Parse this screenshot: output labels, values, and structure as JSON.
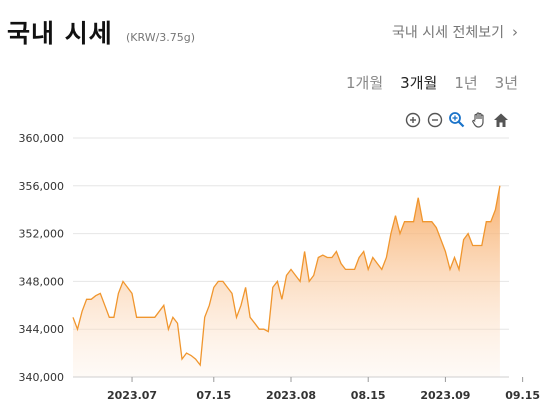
{
  "header": {
    "title": "국내 시세",
    "unit": "(KRW/3.75g)",
    "view_all": "국내 시세 전체보기",
    "chevron": "›"
  },
  "ranges": [
    {
      "label": "1개월",
      "active": false
    },
    {
      "label": "3개월",
      "active": true
    },
    {
      "label": "1년",
      "active": false
    },
    {
      "label": "3년",
      "active": false
    }
  ],
  "toolbar": [
    "zoom-in-icon",
    "zoom-out-icon",
    "magnifier-icon",
    "pan-hand-icon",
    "home-icon"
  ],
  "colors": {
    "line": "#f0962e",
    "fill_top": "#f7a55a",
    "grid": "#e6e6e6"
  },
  "chart_data": {
    "type": "area",
    "ylim": [
      340000,
      360000
    ],
    "y_ticks": [
      340000,
      344000,
      348000,
      352000,
      356000,
      360000
    ],
    "y_tick_labels": [
      "340,000",
      "344,000",
      "348,000",
      "352,000",
      "356,000",
      "360,000"
    ],
    "x_range": [
      0,
      96
    ],
    "x_ticks": [
      {
        "x": 13,
        "label": "2023.07"
      },
      {
        "x": 31,
        "label": "07.15"
      },
      {
        "x": 48,
        "label": "2023.08"
      },
      {
        "x": 65,
        "label": "08.15"
      },
      {
        "x": 82,
        "label": "2023.09"
      },
      {
        "x": 99,
        "label": "09.15"
      }
    ],
    "series": [
      {
        "values": [
          [
            0,
            345000
          ],
          [
            1,
            344000
          ],
          [
            2,
            345500
          ],
          [
            3,
            346500
          ],
          [
            4,
            346500
          ],
          [
            5,
            346800
          ],
          [
            6,
            347000
          ],
          [
            7,
            346000
          ],
          [
            8,
            345000
          ],
          [
            9,
            345000
          ],
          [
            10,
            347000
          ],
          [
            11,
            348000
          ],
          [
            12,
            347500
          ],
          [
            13,
            347000
          ],
          [
            14,
            345000
          ],
          [
            15,
            345000
          ],
          [
            16,
            345000
          ],
          [
            17,
            345000
          ],
          [
            18,
            345000
          ],
          [
            19,
            345500
          ],
          [
            20,
            346000
          ],
          [
            21,
            344000
          ],
          [
            22,
            345000
          ],
          [
            23,
            344500
          ],
          [
            24,
            341500
          ],
          [
            25,
            342000
          ],
          [
            26,
            341800
          ],
          [
            27,
            341500
          ],
          [
            28,
            341000
          ],
          [
            29,
            345000
          ],
          [
            30,
            346000
          ],
          [
            31,
            347500
          ],
          [
            32,
            348000
          ],
          [
            33,
            348000
          ],
          [
            34,
            347500
          ],
          [
            35,
            347000
          ],
          [
            36,
            345000
          ],
          [
            37,
            346000
          ],
          [
            38,
            347500
          ],
          [
            39,
            345000
          ],
          [
            40,
            344500
          ],
          [
            41,
            344000
          ],
          [
            42,
            344000
          ],
          [
            43,
            343800
          ],
          [
            44,
            347500
          ],
          [
            45,
            348000
          ],
          [
            46,
            346500
          ],
          [
            47,
            348500
          ],
          [
            48,
            349000
          ],
          [
            49,
            348500
          ],
          [
            50,
            348000
          ],
          [
            51,
            350500
          ],
          [
            52,
            348000
          ],
          [
            53,
            348500
          ],
          [
            54,
            350000
          ],
          [
            55,
            350200
          ],
          [
            56,
            350000
          ],
          [
            57,
            350000
          ],
          [
            58,
            350500
          ],
          [
            59,
            349500
          ],
          [
            60,
            349000
          ],
          [
            61,
            349000
          ],
          [
            62,
            349000
          ],
          [
            63,
            350000
          ],
          [
            64,
            350500
          ],
          [
            65,
            349000
          ],
          [
            66,
            350000
          ],
          [
            67,
            349500
          ],
          [
            68,
            349000
          ],
          [
            69,
            350000
          ],
          [
            70,
            352000
          ],
          [
            71,
            353500
          ],
          [
            72,
            352000
          ],
          [
            73,
            353000
          ],
          [
            74,
            353000
          ],
          [
            75,
            353000
          ],
          [
            76,
            355000
          ],
          [
            77,
            353000
          ],
          [
            78,
            353000
          ],
          [
            79,
            353000
          ],
          [
            80,
            352500
          ],
          [
            81,
            351500
          ],
          [
            82,
            350500
          ],
          [
            83,
            349000
          ],
          [
            84,
            350000
          ],
          [
            85,
            349000
          ],
          [
            86,
            351500
          ],
          [
            87,
            352000
          ],
          [
            88,
            351000
          ],
          [
            89,
            351000
          ],
          [
            90,
            351000
          ],
          [
            91,
            353000
          ],
          [
            92,
            353000
          ],
          [
            93,
            354000
          ],
          [
            94,
            356000
          ]
        ]
      }
    ]
  }
}
